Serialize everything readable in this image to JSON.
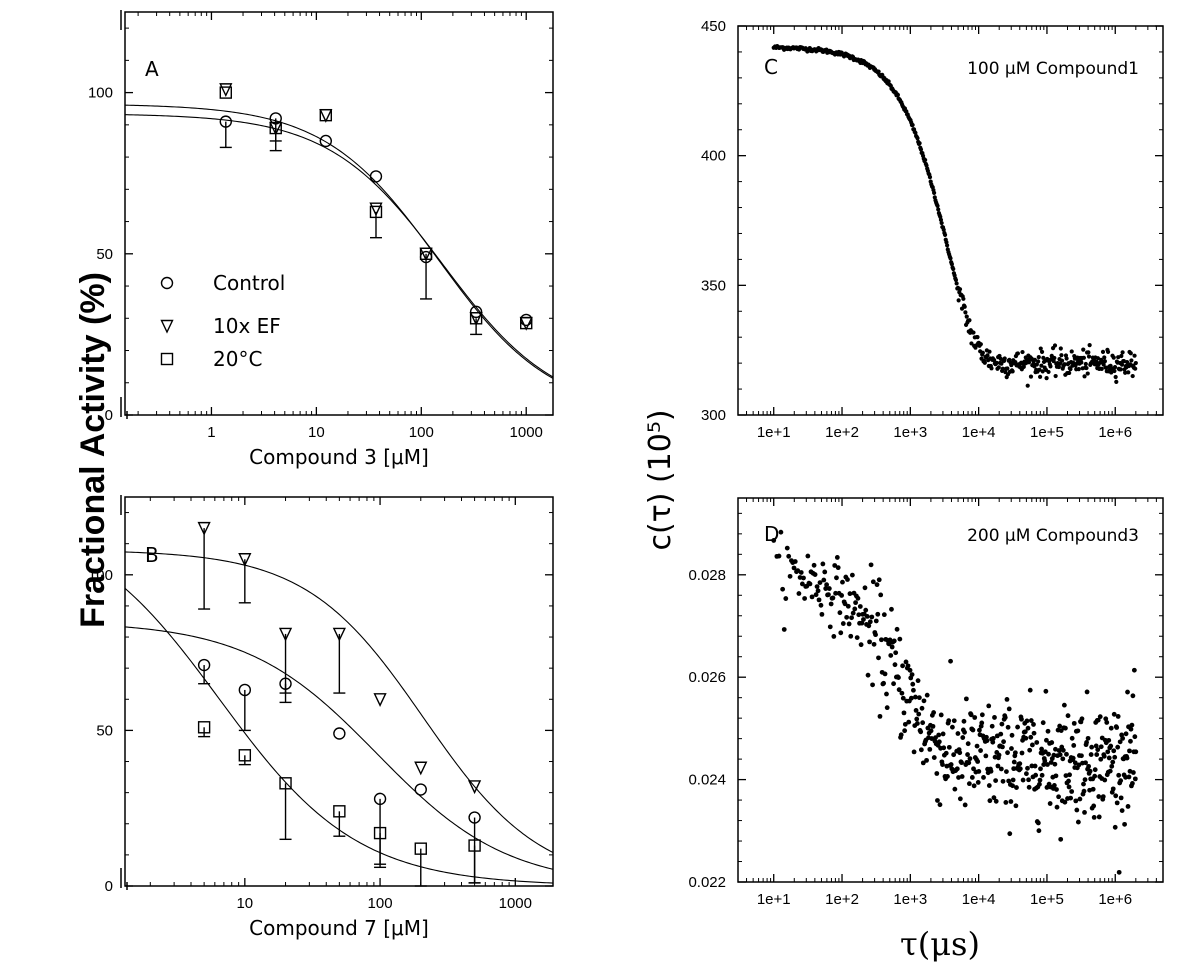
{
  "figure": {
    "shared_ylabel_left": "Fractional Activity (%)",
    "shared_ylabel_right": "c(τ) (10⁵)",
    "shared_xlabel_right": "τ(μs)"
  },
  "chart_data": [
    {
      "panel": "A",
      "type": "scatter",
      "xscale": "log",
      "xlabel": "Compound 3 [μM]",
      "xlim": [
        0.15,
        1800
      ],
      "xticks": [
        1,
        10,
        100,
        1000
      ],
      "xtick_labels": [
        "1",
        "10",
        "100",
        "1000"
      ],
      "ylim": [
        0,
        125
      ],
      "yticks": [
        0,
        50,
        100
      ],
      "ytick_labels": [
        "0",
        "50",
        "100"
      ],
      "legend": {
        "placement": "bottom-left",
        "entries": [
          "Control",
          "10x  EF",
          "20°C"
        ]
      },
      "series": [
        {
          "name": "Control",
          "marker": "circle",
          "x": [
            1.37,
            4.1,
            12.3,
            37,
            111,
            333,
            1000
          ],
          "y": [
            91,
            92,
            85,
            74,
            49,
            32,
            29.5
          ],
          "err_low": [
            8,
            7,
            0,
            0,
            0,
            0,
            0
          ]
        },
        {
          "name": "10x  EF",
          "marker": "triangle-down",
          "x": [
            1.37,
            4.1,
            12.3,
            37,
            111,
            333,
            1000
          ],
          "y": [
            101,
            89,
            93,
            64,
            50,
            30,
            28.5
          ],
          "err_low": [
            0,
            0,
            0,
            0,
            0,
            0,
            0
          ]
        },
        {
          "name": "20°C",
          "marker": "square",
          "x": [
            1.37,
            4.1,
            12.3,
            37,
            111,
            333,
            1000
          ],
          "y": [
            100,
            89,
            93,
            63,
            50,
            30,
            28.5
          ],
          "err_low": [
            0,
            7,
            0,
            8,
            14,
            5,
            0
          ]
        }
      ],
      "fit_curves": [
        {
          "top": 96.5,
          "bottom": 0,
          "ic50": 145,
          "hill": 0.8
        },
        {
          "top": 93.5,
          "bottom": 0,
          "ic50": 160,
          "hill": 0.8
        }
      ]
    },
    {
      "panel": "B",
      "type": "scatter",
      "xscale": "log",
      "xlabel": "Compound 7 [μM]",
      "xlim": [
        1.3,
        1900
      ],
      "xticks": [
        10,
        100,
        1000
      ],
      "xtick_labels": [
        "10",
        "100",
        "1000"
      ],
      "ylim": [
        0,
        125
      ],
      "yticks": [
        0,
        50,
        100
      ],
      "ytick_labels": [
        "0",
        "50",
        "100"
      ],
      "series": [
        {
          "name": "Control",
          "marker": "circle",
          "x": [
            5,
            10,
            20,
            50,
            100,
            200,
            500
          ],
          "y": [
            71,
            63,
            65,
            49,
            28,
            31,
            22
          ],
          "err_low": [
            6,
            13,
            6,
            0,
            22,
            0,
            21
          ]
        },
        {
          "name": "10x  EF",
          "marker": "triangle-down",
          "x": [
            5,
            10,
            20,
            50,
            100,
            200,
            500
          ],
          "y": [
            115,
            105,
            81,
            81,
            60,
            38,
            32
          ],
          "err_low": [
            26,
            14,
            19,
            19,
            0,
            0,
            0
          ]
        },
        {
          "name": "20°C",
          "marker": "square",
          "x": [
            5,
            10,
            20,
            50,
            100,
            200,
            500
          ],
          "y": [
            51,
            42,
            33,
            24,
            17,
            12,
            13
          ],
          "err_low": [
            3,
            3,
            18,
            8,
            10,
            12,
            12
          ]
        }
      ],
      "fit_curves": [
        {
          "top": 108,
          "bottom": 0,
          "ic50": 210,
          "hill": 1.0
        },
        {
          "top": 85,
          "bottom": 0,
          "ic50": 95,
          "hill": 0.9
        },
        {
          "top": 120,
          "bottom": 0,
          "ic50": 6.5,
          "hill": 0.85
        }
      ]
    },
    {
      "panel": "C",
      "type": "scatter",
      "xscale": "log",
      "annotation": "100 μM Compound1",
      "xlim": [
        3,
        5000000
      ],
      "xticks": [
        10,
        100,
        1000,
        10000,
        100000,
        1000000
      ],
      "xtick_labels": [
        "1e+1",
        "1e+2",
        "1e+3",
        "1e+4",
        "1e+5",
        "1e+6"
      ],
      "ylim": [
        300,
        450
      ],
      "yticks": [
        300,
        350,
        400,
        450
      ],
      "ytick_labels": [
        "300",
        "350",
        "400",
        "450"
      ],
      "model": {
        "A": 442,
        "B": 122,
        "tau": 3500,
        "beta": 1.05,
        "noise": 2.5,
        "x_start": 10,
        "x_end": 2000000
      }
    },
    {
      "panel": "D",
      "type": "scatter",
      "xscale": "log",
      "annotation": "200 μM Compound3",
      "xlim": [
        3,
        5000000
      ],
      "xticks": [
        10,
        100,
        1000,
        10000,
        100000,
        1000000
      ],
      "xtick_labels": [
        "1e+1",
        "1e+2",
        "1e+3",
        "1e+4",
        "1e+5",
        "1e+6"
      ],
      "ylim": [
        0.022,
        0.0295
      ],
      "yticks": [
        0.022,
        0.024,
        0.026,
        0.028
      ],
      "ytick_labels": [
        "0.022",
        "0.024",
        "0.026",
        "0.028"
      ],
      "model": {
        "A": 0.0282,
        "B": 0.0038,
        "tau": 800,
        "beta": 0.8,
        "noise": 0.00055,
        "x_start": 10,
        "x_end": 2000000
      }
    }
  ]
}
